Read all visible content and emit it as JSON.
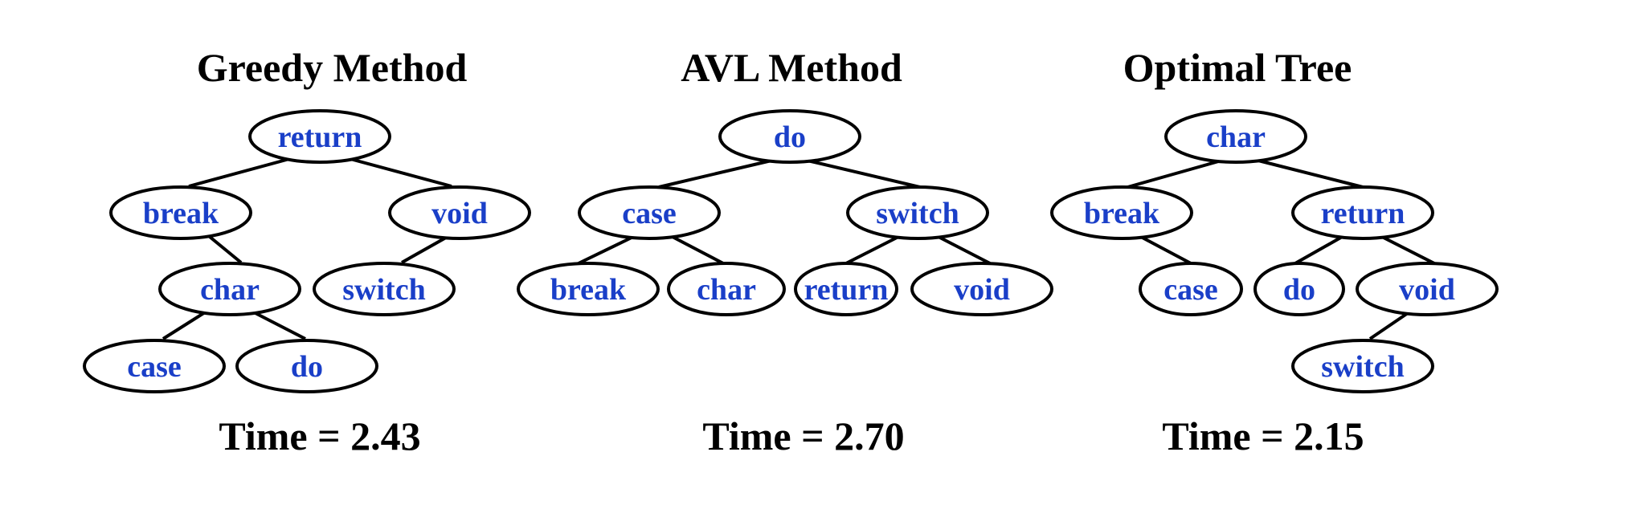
{
  "colors": {
    "node_text": "#1a3fc8",
    "line": "#000000",
    "title_text": "#000000"
  },
  "trees": [
    {
      "id": "greedy",
      "title": "Greedy Method",
      "time": "Time = 2.43",
      "root": "return",
      "nodes": [
        "return",
        "break",
        "void",
        "char",
        "switch",
        "case",
        "do"
      ],
      "edges": [
        [
          "return",
          "break"
        ],
        [
          "return",
          "void"
        ],
        [
          "break",
          "char"
        ],
        [
          "void",
          "switch"
        ],
        [
          "char",
          "case"
        ],
        [
          "char",
          "do"
        ]
      ]
    },
    {
      "id": "avl",
      "title": "AVL Method",
      "time": "Time = 2.70",
      "root": "do",
      "nodes": [
        "do",
        "case",
        "switch",
        "break",
        "char",
        "return",
        "void"
      ],
      "edges": [
        [
          "do",
          "case"
        ],
        [
          "do",
          "switch"
        ],
        [
          "case",
          "break"
        ],
        [
          "case",
          "char"
        ],
        [
          "switch",
          "return"
        ],
        [
          "switch",
          "void"
        ]
      ]
    },
    {
      "id": "optimal",
      "title": "Optimal Tree",
      "time": "Time = 2.15",
      "root": "char",
      "nodes": [
        "char",
        "break",
        "return",
        "case",
        "do",
        "void",
        "switch"
      ],
      "edges": [
        [
          "char",
          "break"
        ],
        [
          "char",
          "return"
        ],
        [
          "break",
          "case"
        ],
        [
          "return",
          "do"
        ],
        [
          "return",
          "void"
        ],
        [
          "void",
          "switch"
        ]
      ]
    }
  ]
}
